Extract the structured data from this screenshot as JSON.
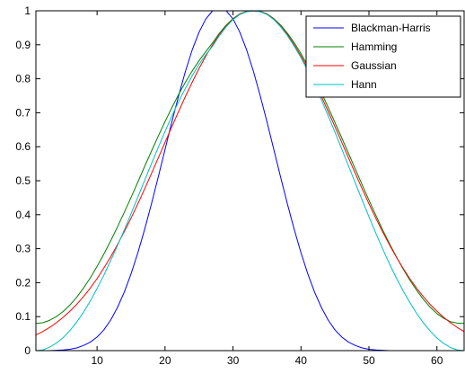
{
  "chart_data": {
    "type": "line",
    "title": "",
    "xlabel": "",
    "ylabel": "",
    "xlim": [
      1,
      64
    ],
    "ylim": [
      0,
      1
    ],
    "xticks": [
      10,
      20,
      30,
      40,
      50,
      60
    ],
    "yticks": [
      0,
      0.1,
      0.2,
      0.3,
      0.4,
      0.5,
      0.6,
      0.7,
      0.8,
      0.9,
      1
    ],
    "grid": false,
    "legend_position": "top-right",
    "x": [
      1,
      2,
      3,
      4,
      5,
      6,
      7,
      8,
      9,
      10,
      11,
      12,
      13,
      14,
      15,
      16,
      17,
      18,
      19,
      20,
      21,
      22,
      23,
      24,
      25,
      26,
      27,
      28,
      29,
      30,
      31,
      32,
      33,
      34,
      35,
      36,
      37,
      38,
      39,
      40,
      41,
      42,
      43,
      44,
      45,
      46,
      47,
      48,
      49,
      50,
      51,
      52,
      53,
      54,
      55,
      56,
      57,
      58,
      59,
      60,
      61,
      62,
      63,
      64
    ],
    "series": [
      {
        "name": "Blackman-Harris",
        "color": "#0000ff",
        "values": [
          0.0,
          0.0,
          0.0,
          0.001,
          0.002,
          0.004,
          0.008,
          0.015,
          0.025,
          0.04,
          0.061,
          0.09,
          0.127,
          0.172,
          0.226,
          0.288,
          0.357,
          0.432,
          0.511,
          0.592,
          0.673,
          0.75,
          0.822,
          0.885,
          0.937,
          0.976,
          1.0,
          1.0,
          1.0,
          0.976,
          0.937,
          0.885,
          0.822,
          0.75,
          0.673,
          0.592,
          0.511,
          0.432,
          0.357,
          0.288,
          0.226,
          0.172,
          0.127,
          0.09,
          0.061,
          0.04,
          0.025,
          0.015,
          0.008,
          0.004,
          0.002,
          0.001,
          0.0,
          0.0,
          0.0,
          0.0,
          0.0,
          0.0,
          0.0,
          0.0,
          0.0,
          0.0,
          0.0,
          0.0
        ]
      },
      {
        "name": "Hamming",
        "color": "#008000",
        "values": [
          0.08,
          0.082,
          0.089,
          0.1,
          0.115,
          0.134,
          0.157,
          0.184,
          0.214,
          0.248,
          0.284,
          0.323,
          0.364,
          0.407,
          0.451,
          0.496,
          0.542,
          0.587,
          0.631,
          0.674,
          0.715,
          0.754,
          0.79,
          0.823,
          0.853,
          0.88,
          0.906,
          0.934,
          0.958,
          0.977,
          0.991,
          0.998,
          1.0,
          0.998,
          0.991,
          0.977,
          0.958,
          0.934,
          0.906,
          0.874,
          0.838,
          0.8,
          0.759,
          0.716,
          0.671,
          0.626,
          0.58,
          0.534,
          0.488,
          0.443,
          0.399,
          0.356,
          0.316,
          0.277,
          0.241,
          0.208,
          0.178,
          0.151,
          0.128,
          0.109,
          0.095,
          0.085,
          0.081,
          0.08
        ]
      },
      {
        "name": "Gaussian",
        "color": "#ff0000",
        "values": [
          0.046,
          0.056,
          0.068,
          0.082,
          0.098,
          0.116,
          0.136,
          0.159,
          0.184,
          0.212,
          0.243,
          0.276,
          0.312,
          0.35,
          0.39,
          0.432,
          0.476,
          0.521,
          0.567,
          0.613,
          0.659,
          0.704,
          0.748,
          0.79,
          0.83,
          0.867,
          0.9,
          0.93,
          0.955,
          0.975,
          0.99,
          0.998,
          1.0,
          0.998,
          0.99,
          0.975,
          0.955,
          0.93,
          0.9,
          0.867,
          0.83,
          0.79,
          0.748,
          0.704,
          0.659,
          0.613,
          0.567,
          0.521,
          0.476,
          0.432,
          0.39,
          0.35,
          0.312,
          0.276,
          0.243,
          0.212,
          0.184,
          0.159,
          0.136,
          0.116,
          0.098,
          0.082,
          0.068,
          0.056
        ]
      },
      {
        "name": "Hann",
        "color": "#00bfbf",
        "values": [
          0.0,
          0.002,
          0.01,
          0.022,
          0.038,
          0.059,
          0.084,
          0.113,
          0.146,
          0.183,
          0.222,
          0.265,
          0.309,
          0.355,
          0.403,
          0.452,
          0.501,
          0.55,
          0.598,
          0.645,
          0.69,
          0.733,
          0.772,
          0.809,
          0.842,
          0.871,
          0.896,
          0.927,
          0.953,
          0.974,
          0.989,
          0.997,
          1.0,
          0.997,
          0.989,
          0.974,
          0.953,
          0.927,
          0.896,
          0.862,
          0.823,
          0.782,
          0.738,
          0.691,
          0.643,
          0.593,
          0.543,
          0.493,
          0.443,
          0.394,
          0.346,
          0.3,
          0.256,
          0.215,
          0.177,
          0.142,
          0.11,
          0.082,
          0.058,
          0.037,
          0.021,
          0.009,
          0.002,
          0.0
        ]
      }
    ]
  }
}
